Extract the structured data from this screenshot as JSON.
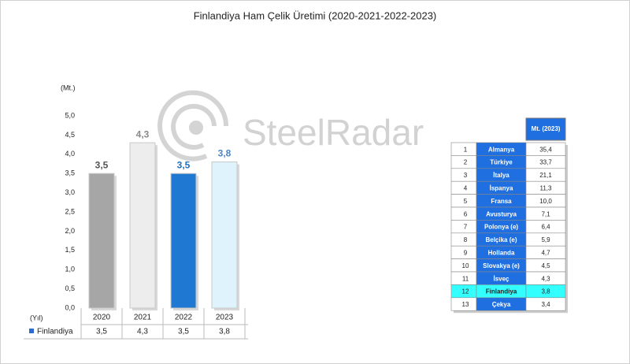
{
  "chart_data": {
    "type": "bar",
    "title": "Finlandiya Ham Çelik Üretimi (2020-2021-2022-2023)",
    "y_axis_label": "(Mt.)",
    "x_axis_label": "(Yıl)",
    "watermark": "SteelRadar",
    "categories": [
      "2020",
      "2021",
      "2022",
      "2023"
    ],
    "series": [
      {
        "name": "Finlandiya",
        "color": "#2e6bd1",
        "values": [
          3.5,
          4.3,
          3.5,
          3.8
        ],
        "value_labels": [
          "3,5",
          "4,3",
          "3,5",
          "3,8"
        ],
        "colors": [
          "#a6a6a6",
          "#ededed",
          "#1f78d1",
          "#def3fb"
        ],
        "label_colors": [
          "#555555",
          "#8a8a8a",
          "#1f6fc4",
          "#4a86c8"
        ]
      }
    ],
    "ylim": [
      0,
      5
    ],
    "yticks": [
      {
        "value": 0,
        "label": "0,0"
      },
      {
        "value": 0.5,
        "label": "0,5"
      },
      {
        "value": 1,
        "label": "1,0"
      },
      {
        "value": 1.5,
        "label": "1,5"
      },
      {
        "value": 2,
        "label": "2,0"
      },
      {
        "value": 2.5,
        "label": "2,5"
      },
      {
        "value": 3,
        "label": "3,0"
      },
      {
        "value": 3.5,
        "label": "3,5"
      },
      {
        "value": 4,
        "label": "4,0"
      },
      {
        "value": 4.5,
        "label": "4,5"
      },
      {
        "value": 5,
        "label": "5,0"
      }
    ],
    "grid": false
  },
  "ranking_table": {
    "header": "Mt. (2023)",
    "highlight_row": 11,
    "rows": [
      [
        "1",
        "Almanya",
        "35,4"
      ],
      [
        "2",
        "Türkiye",
        "33,7"
      ],
      [
        "3",
        "İtalya",
        "21,1"
      ],
      [
        "4",
        "İspanya",
        "11,3"
      ],
      [
        "5",
        "Fransa",
        "10,0"
      ],
      [
        "6",
        "Avusturya",
        "7,1"
      ],
      [
        "7",
        "Polonya (e)",
        "6,4"
      ],
      [
        "8",
        "Belçika (e)",
        "5,9"
      ],
      [
        "9",
        "Hollanda",
        "4,7"
      ],
      [
        "10",
        "Slovakya (e)",
        "4,5"
      ],
      [
        "11",
        "İsveç",
        "4,3"
      ],
      [
        "12",
        "Finlandiya",
        "3,8"
      ],
      [
        "13",
        "Çekya",
        "3,4"
      ]
    ]
  }
}
